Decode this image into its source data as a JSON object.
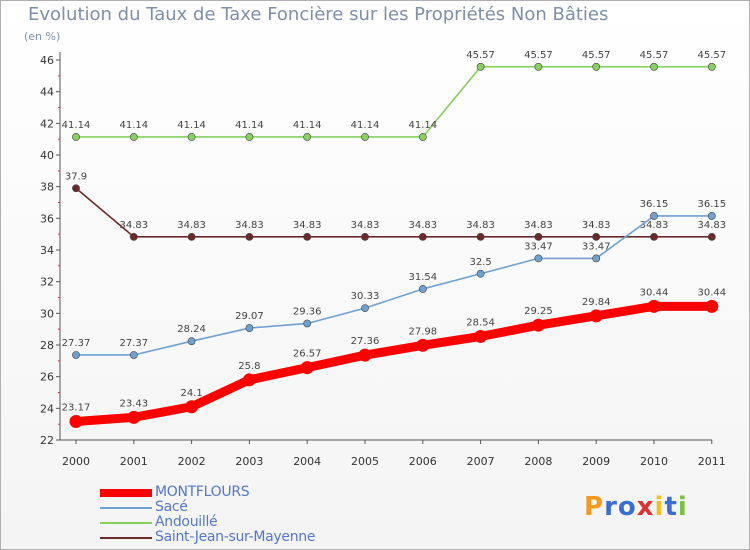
{
  "chart_data": {
    "type": "line",
    "title": "Evolution du Taux de Taxe Foncière sur les Propriétés Non Bâties",
    "ylabel": "(en %)",
    "xlabel": "",
    "ylim": [
      22,
      46
    ],
    "yticks": [
      22,
      24,
      26,
      28,
      30,
      32,
      34,
      36,
      38,
      40,
      42,
      44,
      46
    ],
    "categories": [
      "2000",
      "2001",
      "2002",
      "2003",
      "2004",
      "2005",
      "2006",
      "2007",
      "2008",
      "2009",
      "2010",
      "2011"
    ],
    "series": [
      {
        "name": "MONTFLOURS",
        "color": "#ff0000",
        "values": [
          23.17,
          23.43,
          24.1,
          25.8,
          26.57,
          27.36,
          27.98,
          28.54,
          29.25,
          29.84,
          30.44,
          30.44
        ],
        "labels": [
          "23.17",
          "23.43",
          "24.1",
          "25.8",
          "26.57",
          "27.36",
          "27.98",
          "28.54",
          "29.25",
          "29.84",
          "30.44",
          "30.44"
        ]
      },
      {
        "name": "Sacé",
        "color": "#6fa0d0",
        "values": [
          27.37,
          27.37,
          28.24,
          29.07,
          29.36,
          30.33,
          31.54,
          32.5,
          33.47,
          33.47,
          36.15,
          36.15
        ],
        "labels": [
          "27.37",
          "27.37",
          "28.24",
          "29.07",
          "29.36",
          "30.33",
          "31.54",
          "32.5",
          "33.47",
          "33.47",
          "36.15",
          "36.15"
        ]
      },
      {
        "name": "Andouillé",
        "color": "#88d060",
        "values": [
          41.14,
          41.14,
          41.14,
          41.14,
          41.14,
          41.14,
          41.14,
          45.57,
          45.57,
          45.57,
          45.57,
          45.57
        ],
        "labels": [
          "41.14",
          "41.14",
          "41.14",
          "41.14",
          "41.14",
          "41.14",
          "41.14",
          "45.57",
          "45.57",
          "45.57",
          "45.57",
          "45.57"
        ]
      },
      {
        "name": "Saint-Jean-sur-Mayenne",
        "color": "#6b2a2a",
        "values": [
          37.9,
          34.83,
          34.83,
          34.83,
          34.83,
          34.83,
          34.83,
          34.83,
          34.83,
          34.83,
          34.83,
          34.83
        ],
        "labels": [
          "37.9",
          "34.83",
          "34.83",
          "34.83",
          "34.83",
          "34.83",
          "34.83",
          "34.83",
          "34.83",
          "34.83",
          "34.83",
          "34.83"
        ]
      }
    ],
    "legend_position": "bottom-left",
    "grid": false
  },
  "branding": {
    "logo_text": "Proxiti",
    "logo_letters": [
      "P",
      "r",
      "o",
      "x",
      "i",
      "t",
      "i"
    ],
    "logo_colors": [
      "#f39a1c",
      "#3a6fd0",
      "#3a6fd0",
      "#e03030",
      "#f0c020",
      "#3a6fd0",
      "#7bc043"
    ]
  }
}
